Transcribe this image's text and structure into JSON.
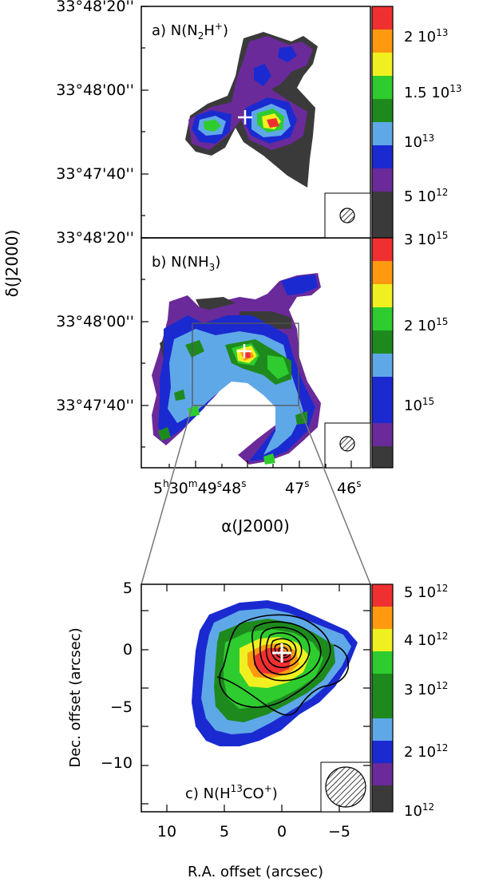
{
  "colorscale": [
    "#3a3a3a",
    "#6a2a9a",
    "#4a1a8a",
    "#1a2ad0",
    "#5fa8e8",
    "#1e8a1e",
    "#2ecc2e",
    "#f0f020",
    "#ff9a10",
    "#f03030"
  ],
  "panels": {
    "a": {
      "label": "a) N(N",
      "sub": "2",
      "mid": "H",
      "sup": "+",
      "close": ")",
      "ytick_labels": [
        "33°48'20''",
        "33°48'00''",
        "33°47'40''"
      ],
      "colorbar_labels": [
        "2 10",
        "1.5 10",
        "10",
        "5 10"
      ],
      "colorbar_exps": [
        "13",
        "13",
        "13",
        "12"
      ]
    },
    "b": {
      "label": "b) N(NH",
      "sub": "3",
      "close": ")",
      "ytick_labels": [
        "33°48'20''",
        "33°48'00''",
        "33°47'40''"
      ],
      "colorbar_labels": [
        "3 10",
        "2 10",
        "10"
      ],
      "colorbar_exps": [
        "15",
        "15",
        "15"
      ],
      "xtick_labels": [
        "5",
        "h",
        "30",
        "m",
        "49",
        "s",
        "48",
        "s",
        "47",
        "s",
        "46",
        "s"
      ]
    },
    "c": {
      "label": "c) N(H",
      "sup1": "13",
      "mid": "CO",
      "sup2": "+",
      "close": ")",
      "ytick_labels": [
        "5",
        "0",
        "−5",
        "−10"
      ],
      "xtick_labels": [
        "10",
        "5",
        "0",
        "−5"
      ],
      "colorbar_labels": [
        "5 10",
        "4 10",
        "3 10",
        "2 10",
        "10"
      ],
      "colorbar_exps": [
        "12",
        "12",
        "12",
        "12",
        "12"
      ]
    }
  },
  "axes": {
    "ylabel_top": "δ(J2000)",
    "xlabel_top": "α(J2000)",
    "ylabel_bottom": "Dec. offset (arcsec)",
    "xlabel_bottom": "R.A. offset (arcsec)"
  }
}
